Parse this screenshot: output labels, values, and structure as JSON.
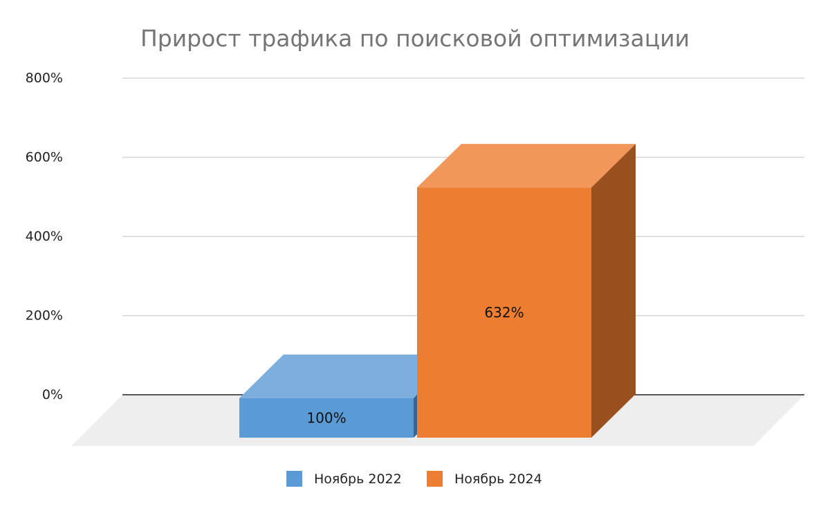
{
  "chart_data": {
    "type": "bar",
    "title": "Прирост трафика по поисковой оптимизации",
    "categories": [
      ""
    ],
    "series": [
      {
        "name": "Ноябрь 2022",
        "values": [
          100
        ],
        "label": "100%",
        "color": "#5B9BD5"
      },
      {
        "name": "Ноябрь 2024",
        "values": [
          632
        ],
        "label": "632%",
        "color": "#ED7D31"
      }
    ],
    "ylim": [
      0,
      800
    ],
    "yticks": [
      0,
      200,
      400,
      600,
      800
    ],
    "ytick_labels": [
      "0%",
      "200%",
      "400%",
      "600%",
      "800%"
    ],
    "grid": true,
    "legend_position": "bottom",
    "style": "3d"
  }
}
